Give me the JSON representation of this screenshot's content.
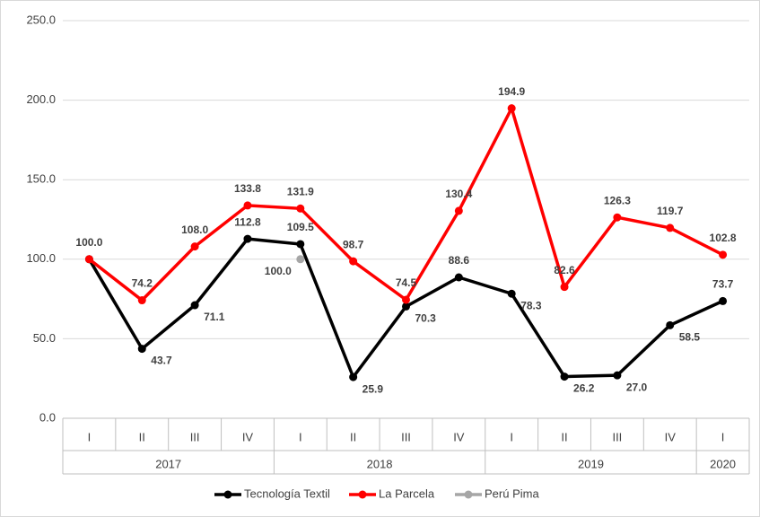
{
  "chart_data": {
    "type": "line",
    "groups": [
      {
        "label": "2017",
        "quarters": [
          "I",
          "II",
          "III",
          "IV"
        ]
      },
      {
        "label": "2018",
        "quarters": [
          "I",
          "II",
          "III",
          "IV"
        ]
      },
      {
        "label": "2019",
        "quarters": [
          "I",
          "II",
          "III",
          "IV"
        ]
      },
      {
        "label": "2020",
        "quarters": [
          "I"
        ]
      }
    ],
    "series": [
      {
        "name": "Tecnología Textil",
        "color": "#000000",
        "values": [
          100.0,
          43.7,
          71.1,
          112.8,
          109.5,
          25.9,
          70.3,
          88.6,
          78.3,
          26.2,
          27.0,
          58.5,
          73.7
        ],
        "value_labels": [
          "100.0",
          "43.7",
          "71.1",
          "112.8",
          "109.5",
          "25.9",
          "70.3",
          "88.6",
          "78.3",
          "26.2",
          "27.0",
          "58.5",
          "73.7"
        ]
      },
      {
        "name": "La Parcela",
        "color": "#ff0000",
        "values": [
          100.0,
          74.2,
          108.0,
          133.8,
          131.9,
          98.7,
          74.5,
          130.4,
          194.9,
          82.6,
          126.3,
          119.7,
          102.8
        ],
        "value_labels": [
          "100.0",
          "74.2",
          "108.0",
          "133.8",
          "131.9",
          "98.7",
          "74.5",
          "130.4",
          "194.9",
          "82.6",
          "126.3",
          "119.7",
          "102.8"
        ]
      },
      {
        "name": "Perú Pima",
        "color": "#a6a6a6",
        "values": [
          null,
          null,
          null,
          null,
          100.0,
          null,
          null,
          null,
          null,
          null,
          null,
          null,
          null
        ],
        "value_labels": [
          null,
          null,
          null,
          null,
          "100.0",
          null,
          null,
          null,
          null,
          null,
          null,
          null,
          null
        ]
      }
    ],
    "ylim": [
      0,
      250
    ],
    "yticks": [
      {
        "value": 0,
        "label": "0.0"
      },
      {
        "value": 50,
        "label": "50.0"
      },
      {
        "value": 100,
        "label": "100.0"
      },
      {
        "value": 150,
        "label": "150.0"
      },
      {
        "value": 200,
        "label": "200.0"
      },
      {
        "value": 250,
        "label": "250.0"
      }
    ],
    "grid": true,
    "legend": "bottom"
  }
}
